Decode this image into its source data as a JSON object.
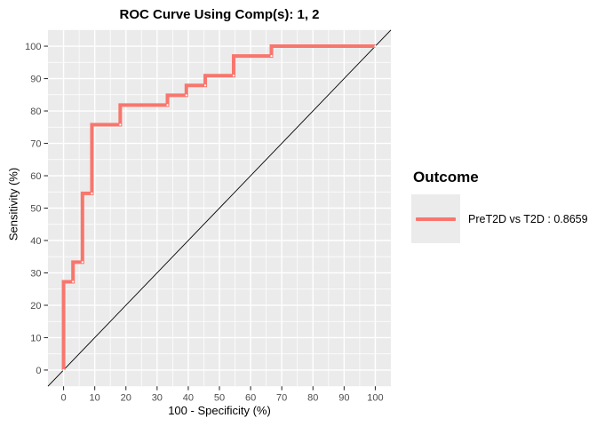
{
  "title": "ROC Curve Using Comp(s): 1, 2",
  "legend": {
    "title": "Outcome",
    "entries": [
      {
        "label": "PreT2D vs T2D : 0.8659",
        "comparison": "PreT2D vs T2D",
        "auc": 0.8659,
        "color": "#F8766D"
      }
    ]
  },
  "colors": {
    "curve": "#F8766D",
    "panel_background": "#EBEBEB",
    "grid": "#FFFFFF",
    "tick_label": "#4D4D4D",
    "tick_mark": "#333333",
    "reference_line": "#000000",
    "marker_dot": "#FFFFFF",
    "legend_key_background": "#EBEBEB"
  },
  "chart_data": {
    "type": "line",
    "variant": "roc-step-curve",
    "title": "ROC Curve Using Comp(s): 1, 2",
    "xlabel": "100 - Specificity (%)",
    "ylabel": "Sensitivity (%)",
    "xlim": [
      -5,
      105
    ],
    "ylim": [
      -5,
      105
    ],
    "x_ticks": [
      0,
      10,
      20,
      30,
      40,
      50,
      60,
      70,
      80,
      90,
      100
    ],
    "y_ticks": [
      0,
      10,
      20,
      30,
      40,
      50,
      60,
      70,
      80,
      90,
      100
    ],
    "grid": {
      "major": true,
      "minor": true,
      "major_every": 10,
      "minor_every": 5
    },
    "legend_position": "right",
    "series": [
      {
        "name": "PreT2D vs T2D : 0.8659",
        "color": "#F8766D",
        "step": "vertical-then-horizontal",
        "points": [
          [
            0,
            0
          ],
          [
            3.03,
            27.27
          ],
          [
            6.06,
            33.33
          ],
          [
            9.09,
            54.55
          ],
          [
            18.18,
            75.76
          ],
          [
            33.33,
            81.82
          ],
          [
            39.39,
            84.85
          ],
          [
            45.45,
            87.88
          ],
          [
            54.55,
            90.91
          ],
          [
            66.67,
            96.97
          ],
          [
            100,
            100
          ]
        ]
      }
    ],
    "reference_line": {
      "from": [
        -5,
        -5
      ],
      "to": [
        105,
        105
      ],
      "color": "#000000"
    }
  }
}
